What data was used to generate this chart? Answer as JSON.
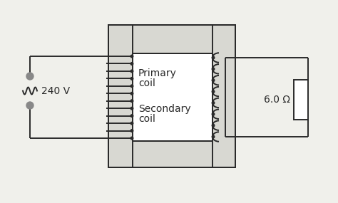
{
  "bg_color": "#f0f0eb",
  "line_color": "#2a2a2a",
  "line_width": 1.4,
  "voltage_label": "240 V",
  "resistance_label": "6.0 Ω",
  "primary_label_1": "Primary",
  "primary_label_2": "coil",
  "secondary_label_1": "Secondary",
  "secondary_label_2": "coil",
  "figsize": [
    4.74,
    2.85
  ],
  "dpi": 100
}
